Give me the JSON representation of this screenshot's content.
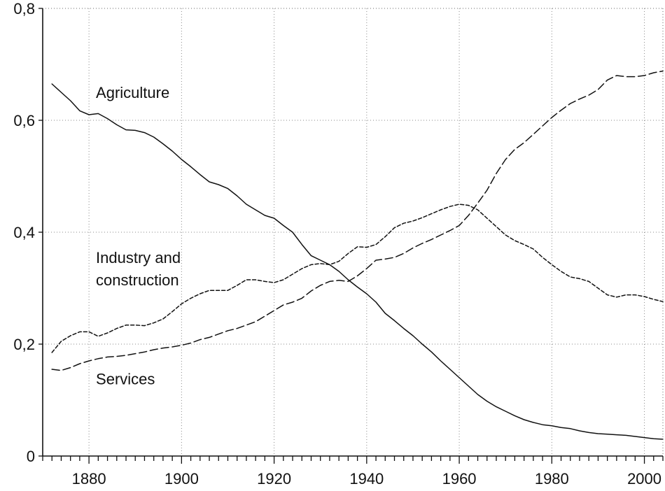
{
  "chart_data": {
    "type": "line",
    "title": "",
    "xlabel": "",
    "ylabel": "",
    "xlim": [
      1870,
      2004
    ],
    "ylim": [
      0,
      0.8
    ],
    "grid": true,
    "x_ticks": [
      {
        "value": 1880,
        "label": "1880"
      },
      {
        "value": 1900,
        "label": "1900"
      },
      {
        "value": 1920,
        "label": "1920"
      },
      {
        "value": 1940,
        "label": "1940"
      },
      {
        "value": 1960,
        "label": "1960"
      },
      {
        "value": 1980,
        "label": "1980"
      },
      {
        "value": 2000,
        "label": "2000"
      }
    ],
    "y_ticks": [
      {
        "value": 0,
        "label": "0"
      },
      {
        "value": 0.2,
        "label": "0,2"
      },
      {
        "value": 0.4,
        "label": "0,4"
      },
      {
        "value": 0.6,
        "label": "0,6"
      },
      {
        "value": 0.8,
        "label": "0,8"
      }
    ],
    "series": [
      {
        "name": "Agriculture",
        "label": "Agriculture",
        "style": "solid",
        "label_lines": [
          "Agriculture"
        ],
        "label_anchor": {
          "x": 1881.5,
          "y": 0.64
        },
        "points": [
          [
            1872,
            0.665
          ],
          [
            1874,
            0.65
          ],
          [
            1876,
            0.635
          ],
          [
            1878,
            0.617
          ],
          [
            1880,
            0.61
          ],
          [
            1882,
            0.612
          ],
          [
            1884,
            0.603
          ],
          [
            1886,
            0.592
          ],
          [
            1888,
            0.583
          ],
          [
            1890,
            0.582
          ],
          [
            1892,
            0.578
          ],
          [
            1894,
            0.57
          ],
          [
            1896,
            0.558
          ],
          [
            1898,
            0.545
          ],
          [
            1900,
            0.53
          ],
          [
            1902,
            0.517
          ],
          [
            1904,
            0.503
          ],
          [
            1906,
            0.49
          ],
          [
            1908,
            0.485
          ],
          [
            1910,
            0.478
          ],
          [
            1912,
            0.465
          ],
          [
            1914,
            0.45
          ],
          [
            1916,
            0.44
          ],
          [
            1918,
            0.43
          ],
          [
            1920,
            0.425
          ],
          [
            1922,
            0.412
          ],
          [
            1924,
            0.4
          ],
          [
            1926,
            0.378
          ],
          [
            1928,
            0.358
          ],
          [
            1930,
            0.35
          ],
          [
            1932,
            0.342
          ],
          [
            1934,
            0.33
          ],
          [
            1936,
            0.315
          ],
          [
            1938,
            0.302
          ],
          [
            1940,
            0.29
          ],
          [
            1942,
            0.275
          ],
          [
            1944,
            0.255
          ],
          [
            1946,
            0.242
          ],
          [
            1948,
            0.228
          ],
          [
            1950,
            0.215
          ],
          [
            1952,
            0.2
          ],
          [
            1954,
            0.186
          ],
          [
            1956,
            0.17
          ],
          [
            1958,
            0.155
          ],
          [
            1960,
            0.14
          ],
          [
            1962,
            0.125
          ],
          [
            1964,
            0.11
          ],
          [
            1966,
            0.098
          ],
          [
            1968,
            0.088
          ],
          [
            1970,
            0.08
          ],
          [
            1972,
            0.072
          ],
          [
            1974,
            0.065
          ],
          [
            1976,
            0.06
          ],
          [
            1978,
            0.056
          ],
          [
            1980,
            0.054
          ],
          [
            1982,
            0.051
          ],
          [
            1984,
            0.049
          ],
          [
            1986,
            0.045
          ],
          [
            1988,
            0.042
          ],
          [
            1990,
            0.04
          ],
          [
            1992,
            0.039
          ],
          [
            1994,
            0.038
          ],
          [
            1996,
            0.037
          ],
          [
            1998,
            0.035
          ],
          [
            2000,
            0.033
          ],
          [
            2002,
            0.031
          ],
          [
            2004,
            0.03
          ]
        ]
      },
      {
        "name": "Industry and construction",
        "label": "Industry and construction",
        "style": "short-dash",
        "label_lines": [
          "Industry and",
          "construction"
        ],
        "label_anchor": {
          "x": 1881.5,
          "y": 0.345
        },
        "points": [
          [
            1872,
            0.185
          ],
          [
            1874,
            0.205
          ],
          [
            1876,
            0.215
          ],
          [
            1878,
            0.222
          ],
          [
            1880,
            0.222
          ],
          [
            1882,
            0.214
          ],
          [
            1884,
            0.22
          ],
          [
            1886,
            0.228
          ],
          [
            1888,
            0.234
          ],
          [
            1890,
            0.234
          ],
          [
            1892,
            0.233
          ],
          [
            1894,
            0.238
          ],
          [
            1896,
            0.245
          ],
          [
            1898,
            0.258
          ],
          [
            1900,
            0.272
          ],
          [
            1902,
            0.282
          ],
          [
            1904,
            0.29
          ],
          [
            1906,
            0.296
          ],
          [
            1908,
            0.296
          ],
          [
            1910,
            0.296
          ],
          [
            1912,
            0.305
          ],
          [
            1914,
            0.315
          ],
          [
            1916,
            0.315
          ],
          [
            1918,
            0.312
          ],
          [
            1920,
            0.31
          ],
          [
            1922,
            0.315
          ],
          [
            1924,
            0.325
          ],
          [
            1926,
            0.335
          ],
          [
            1928,
            0.342
          ],
          [
            1930,
            0.344
          ],
          [
            1932,
            0.342
          ],
          [
            1934,
            0.348
          ],
          [
            1936,
            0.362
          ],
          [
            1938,
            0.374
          ],
          [
            1940,
            0.373
          ],
          [
            1942,
            0.378
          ],
          [
            1944,
            0.392
          ],
          [
            1946,
            0.408
          ],
          [
            1948,
            0.416
          ],
          [
            1950,
            0.42
          ],
          [
            1952,
            0.426
          ],
          [
            1954,
            0.433
          ],
          [
            1956,
            0.44
          ],
          [
            1958,
            0.446
          ],
          [
            1960,
            0.45
          ],
          [
            1962,
            0.448
          ],
          [
            1964,
            0.44
          ],
          [
            1966,
            0.425
          ],
          [
            1968,
            0.41
          ],
          [
            1970,
            0.395
          ],
          [
            1972,
            0.385
          ],
          [
            1974,
            0.378
          ],
          [
            1976,
            0.37
          ],
          [
            1978,
            0.355
          ],
          [
            1980,
            0.342
          ],
          [
            1982,
            0.33
          ],
          [
            1984,
            0.32
          ],
          [
            1986,
            0.317
          ],
          [
            1988,
            0.312
          ],
          [
            1990,
            0.3
          ],
          [
            1992,
            0.288
          ],
          [
            1994,
            0.284
          ],
          [
            1996,
            0.288
          ],
          [
            1998,
            0.288
          ],
          [
            2000,
            0.285
          ],
          [
            2002,
            0.28
          ],
          [
            2004,
            0.276
          ]
        ]
      },
      {
        "name": "Services",
        "label": "Services",
        "style": "long-dash",
        "label_lines": [
          "Services"
        ],
        "label_anchor": {
          "x": 1881.5,
          "y": 0.128
        },
        "points": [
          [
            1872,
            0.155
          ],
          [
            1874,
            0.153
          ],
          [
            1876,
            0.158
          ],
          [
            1878,
            0.165
          ],
          [
            1880,
            0.17
          ],
          [
            1882,
            0.174
          ],
          [
            1884,
            0.177
          ],
          [
            1886,
            0.178
          ],
          [
            1888,
            0.18
          ],
          [
            1890,
            0.183
          ],
          [
            1892,
            0.186
          ],
          [
            1894,
            0.19
          ],
          [
            1896,
            0.193
          ],
          [
            1898,
            0.195
          ],
          [
            1900,
            0.198
          ],
          [
            1902,
            0.202
          ],
          [
            1904,
            0.208
          ],
          [
            1906,
            0.212
          ],
          [
            1908,
            0.218
          ],
          [
            1910,
            0.224
          ],
          [
            1912,
            0.228
          ],
          [
            1914,
            0.234
          ],
          [
            1916,
            0.24
          ],
          [
            1918,
            0.25
          ],
          [
            1920,
            0.26
          ],
          [
            1922,
            0.27
          ],
          [
            1924,
            0.275
          ],
          [
            1926,
            0.282
          ],
          [
            1928,
            0.295
          ],
          [
            1930,
            0.305
          ],
          [
            1932,
            0.312
          ],
          [
            1934,
            0.314
          ],
          [
            1936,
            0.312
          ],
          [
            1938,
            0.322
          ],
          [
            1940,
            0.335
          ],
          [
            1942,
            0.35
          ],
          [
            1944,
            0.352
          ],
          [
            1946,
            0.355
          ],
          [
            1948,
            0.362
          ],
          [
            1950,
            0.372
          ],
          [
            1952,
            0.38
          ],
          [
            1954,
            0.387
          ],
          [
            1956,
            0.395
          ],
          [
            1958,
            0.403
          ],
          [
            1960,
            0.412
          ],
          [
            1962,
            0.43
          ],
          [
            1964,
            0.452
          ],
          [
            1966,
            0.475
          ],
          [
            1968,
            0.505
          ],
          [
            1970,
            0.53
          ],
          [
            1972,
            0.548
          ],
          [
            1974,
            0.56
          ],
          [
            1976,
            0.575
          ],
          [
            1978,
            0.59
          ],
          [
            1980,
            0.605
          ],
          [
            1982,
            0.618
          ],
          [
            1984,
            0.63
          ],
          [
            1986,
            0.638
          ],
          [
            1988,
            0.645
          ],
          [
            1990,
            0.655
          ],
          [
            1992,
            0.672
          ],
          [
            1994,
            0.68
          ],
          [
            1996,
            0.678
          ],
          [
            1998,
            0.678
          ],
          [
            2000,
            0.68
          ],
          [
            2002,
            0.685
          ],
          [
            2004,
            0.688
          ]
        ]
      }
    ]
  }
}
